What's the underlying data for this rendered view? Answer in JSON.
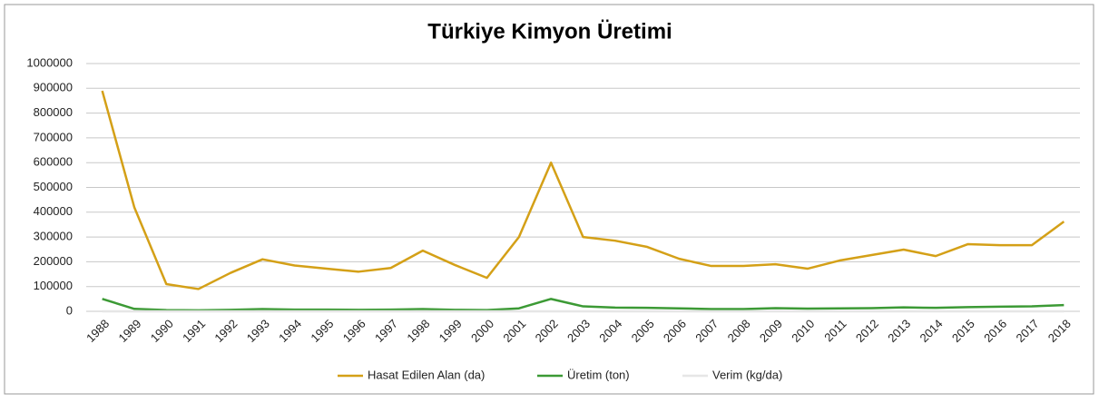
{
  "chart_data": {
    "type": "line",
    "title": "Türkiye Kimyon Üretimi",
    "categories": [
      "1988",
      "1989",
      "1990",
      "1991",
      "1992",
      "1993",
      "1994",
      "1995",
      "1996",
      "1997",
      "1998",
      "1999",
      "2000",
      "2001",
      "2002",
      "2003",
      "2004",
      "2005",
      "2006",
      "2007",
      "2008",
      "2009",
      "2010",
      "2011",
      "2012",
      "2013",
      "2014",
      "2015",
      "2016",
      "2017",
      "2018"
    ],
    "series": [
      {
        "name": "Hasat Edilen Alan (da)",
        "color": "#d4a017",
        "values": [
          890000,
          420000,
          110000,
          90000,
          155000,
          210000,
          185000,
          172000,
          160000,
          175000,
          245000,
          187000,
          135000,
          300000,
          600000,
          300000,
          285000,
          260000,
          212000,
          183000,
          183000,
          190000,
          172000,
          205000,
          227000,
          249000,
          223000,
          271000,
          267000,
          267000,
          362000
        ]
      },
      {
        "name": "Üretim (ton)",
        "color": "#3c9a35",
        "values": [
          50000,
          10000,
          5000,
          4000,
          6000,
          9000,
          7000,
          7000,
          6000,
          7000,
          9000,
          6000,
          5000,
          12000,
          50000,
          20000,
          15000,
          14000,
          12000,
          9000,
          9000,
          13000,
          11000,
          12000,
          13000,
          16000,
          14000,
          17000,
          19000,
          20000,
          25000
        ]
      },
      {
        "name": "Verim (kg/da)",
        "color": "#e6e6e6",
        "values": [
          56,
          24,
          45,
          44,
          39,
          43,
          38,
          41,
          37,
          40,
          37,
          32,
          37,
          40,
          83,
          67,
          53,
          54,
          57,
          49,
          49,
          68,
          64,
          59,
          57,
          64,
          63,
          63,
          71,
          75,
          69
        ]
      }
    ],
    "ylim": [
      0,
      1000000
    ],
    "yticks": [
      0,
      100000,
      200000,
      300000,
      400000,
      500000,
      600000,
      700000,
      800000,
      900000,
      1000000
    ],
    "grid": true,
    "legend": "bottom"
  }
}
